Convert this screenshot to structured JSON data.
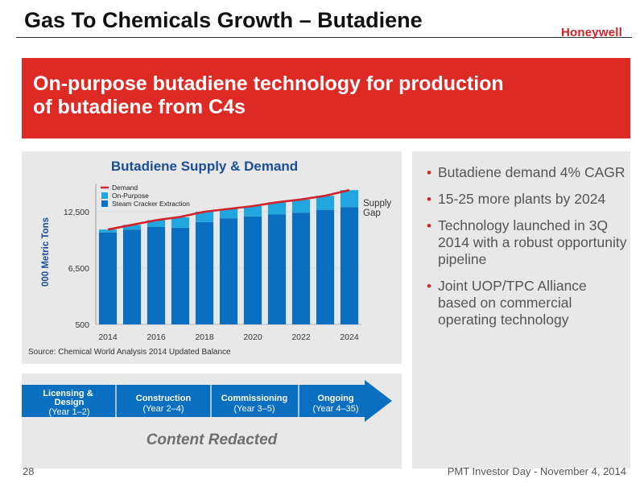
{
  "slide": {
    "title": "Gas To Chemicals Growth – Butadiene",
    "logo": "Honeywell",
    "banner_line1": "On-purpose butadiene technology for production",
    "banner_line2": "of butadiene from C4s",
    "page_number": "28",
    "footer": "PMT Investor Day - November 4, 2014"
  },
  "chart_data": {
    "type": "bar",
    "title": "Butadiene Supply & Demand",
    "ylabel": "000 Metric Tons",
    "ylim": [
      500,
      15500
    ],
    "yticks": [
      500,
      6500,
      12500
    ],
    "ytick_labels": [
      "500",
      "6,500",
      "12,500"
    ],
    "x": [
      2014,
      2015,
      2016,
      2017,
      2018,
      2019,
      2020,
      2021,
      2022,
      2023,
      2024
    ],
    "xtick_labels": [
      "2014",
      "2016",
      "2018",
      "2020",
      "2022",
      "2024"
    ],
    "series": [
      {
        "name": "Steam Cracker Extraction",
        "color": "#0a6fc0",
        "values": [
          10300,
          10600,
          10900,
          10800,
          11400,
          11800,
          12000,
          12200,
          12400,
          12700,
          13000
        ]
      },
      {
        "name": "On-Purpose",
        "color": "#22a6e0",
        "values": [
          300,
          500,
          700,
          1100,
          1100,
          1000,
          1100,
          1300,
          1400,
          1500,
          1800
        ]
      },
      {
        "name": "Demand",
        "color": "#d2232a",
        "values": [
          10600,
          11100,
          11600,
          11950,
          12500,
          12800,
          13100,
          13500,
          13800,
          14200,
          14800
        ]
      }
    ],
    "annotation": "Supply Gap",
    "source": "Source:  Chemical World Analysis 2014 Updated Balance"
  },
  "bullets": [
    "Butadiene demand 4% CAGR",
    "15-25 more plants by 2024",
    "Technology launched in 3Q 2014 with a robust opportunity pipeline",
    "Joint UOP/TPC Alliance based on commercial operating technology"
  ],
  "timeline": {
    "stages": [
      {
        "label": "Licensing & Design",
        "period": "(Year 1–2)"
      },
      {
        "label": "Construction",
        "period": "(Year 2–4)"
      },
      {
        "label": "Commissioning",
        "period": "(Year 3–5)"
      },
      {
        "label": "Ongoing",
        "period": "(Year 4–35)"
      }
    ],
    "redacted": "Content Redacted"
  },
  "colors": {
    "brand_red": "#d2232a",
    "banner_red": "#dd2a25",
    "arrow_blue": "#0a6fc0",
    "title_blue": "#1a4e9a"
  }
}
